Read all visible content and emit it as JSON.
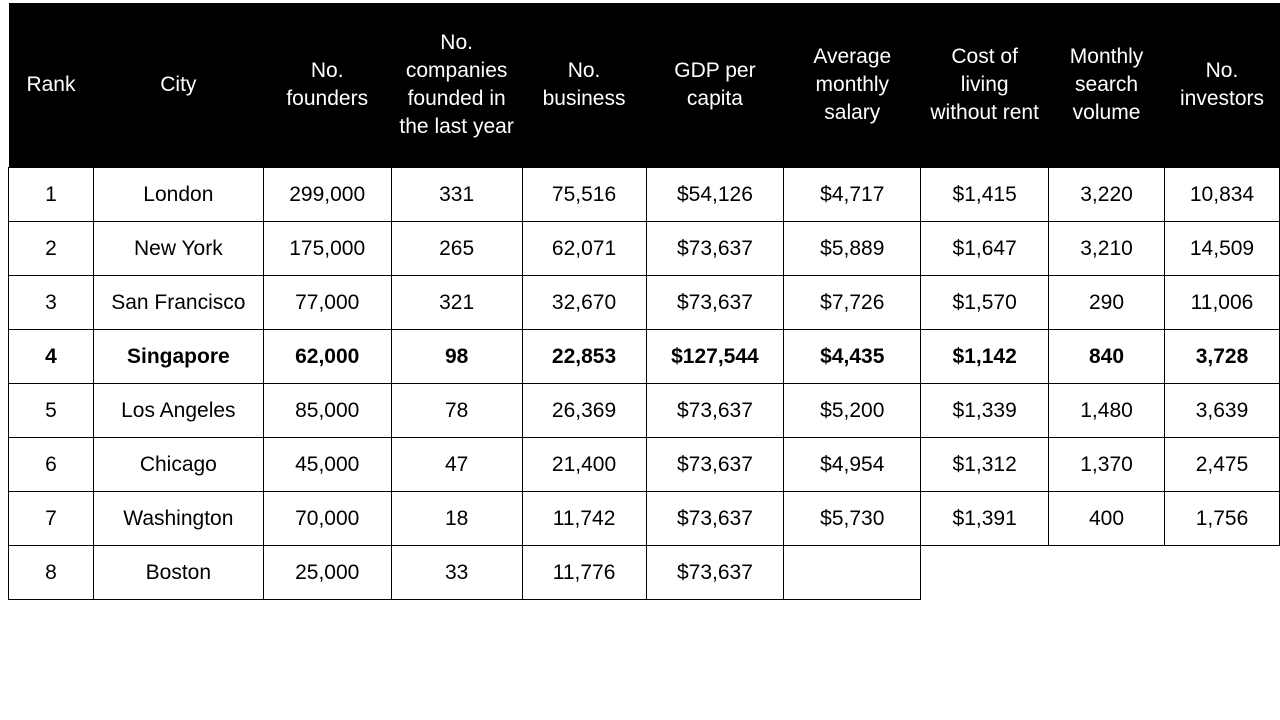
{
  "table": {
    "headers": [
      "Rank",
      "City",
      "No. founders",
      "No. companies founded in the last year",
      "No. business",
      "GDP per capita",
      "Average monthly salary",
      "Cost of living without rent",
      "Monthly search volume",
      "No. investors"
    ],
    "rows": [
      [
        "1",
        "London",
        "299,000",
        "331",
        "75,516",
        "$54,126",
        "$4,717",
        "$1,415",
        "3,220",
        "10,834"
      ],
      [
        "2",
        "New York",
        "175,000",
        "265",
        "62,071",
        "$73,637",
        "$5,889",
        "$1,647",
        "3,210",
        "14,509"
      ],
      [
        "3",
        "San Francisco",
        "77,000",
        "321",
        "32,670",
        "$73,637",
        "$7,726",
        "$1,570",
        "290",
        "11,006"
      ],
      [
        "4",
        "Singapore",
        "62,000",
        "98",
        "22,853",
        "$127,544",
        "$4,435",
        "$1,142",
        "840",
        "3,728"
      ],
      [
        "5",
        "Los Angeles",
        "85,000",
        "78",
        "26,369",
        "$73,637",
        "$5,200",
        "$1,339",
        "1,480",
        "3,639"
      ],
      [
        "6",
        "Chicago",
        "45,000",
        "47",
        "21,400",
        "$73,637",
        "$4,954",
        "$1,312",
        "1,370",
        "2,475"
      ],
      [
        "7",
        "Washington",
        "70,000",
        "18",
        "11,742",
        "$73,637",
        "$5,730",
        "$1,391",
        "400",
        "1,756"
      ],
      [
        "8",
        "Boston",
        "25,000",
        "33",
        "11,776",
        "$73,637",
        "",
        "",
        "",
        ""
      ]
    ]
  }
}
